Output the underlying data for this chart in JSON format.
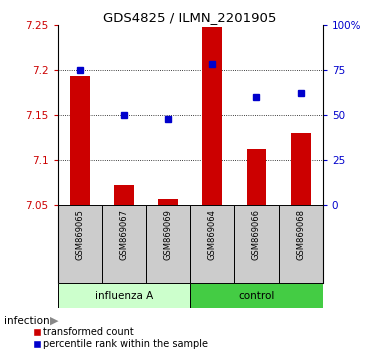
{
  "title": "GDS4825 / ILMN_2201905",
  "samples": [
    "GSM869065",
    "GSM869067",
    "GSM869069",
    "GSM869064",
    "GSM869066",
    "GSM869068"
  ],
  "groups": [
    "influenza A",
    "influenza A",
    "influenza A",
    "control",
    "control",
    "control"
  ],
  "bar_values": [
    7.193,
    7.073,
    7.057,
    7.248,
    7.112,
    7.13
  ],
  "bar_baseline": 7.05,
  "percentile_values": [
    75,
    50,
    48,
    78,
    60,
    62
  ],
  "ylim_left": [
    7.05,
    7.25
  ],
  "ylim_right": [
    0,
    100
  ],
  "yticks_left": [
    7.05,
    7.1,
    7.15,
    7.2,
    7.25
  ],
  "yticks_right": [
    0,
    25,
    50,
    75,
    100
  ],
  "ytick_labels_right": [
    "0",
    "25",
    "50",
    "75",
    "100%"
  ],
  "bar_color": "#cc0000",
  "dot_color": "#0000cc",
  "influenza_bg": "#ccffcc",
  "control_bg": "#44cc44",
  "label_bg": "#cccccc",
  "legend_bar": "transformed count",
  "legend_dot": "percentile rank within the sample",
  "dotted_lines": [
    7.1,
    7.15,
    7.2
  ],
  "bar_width": 0.45
}
